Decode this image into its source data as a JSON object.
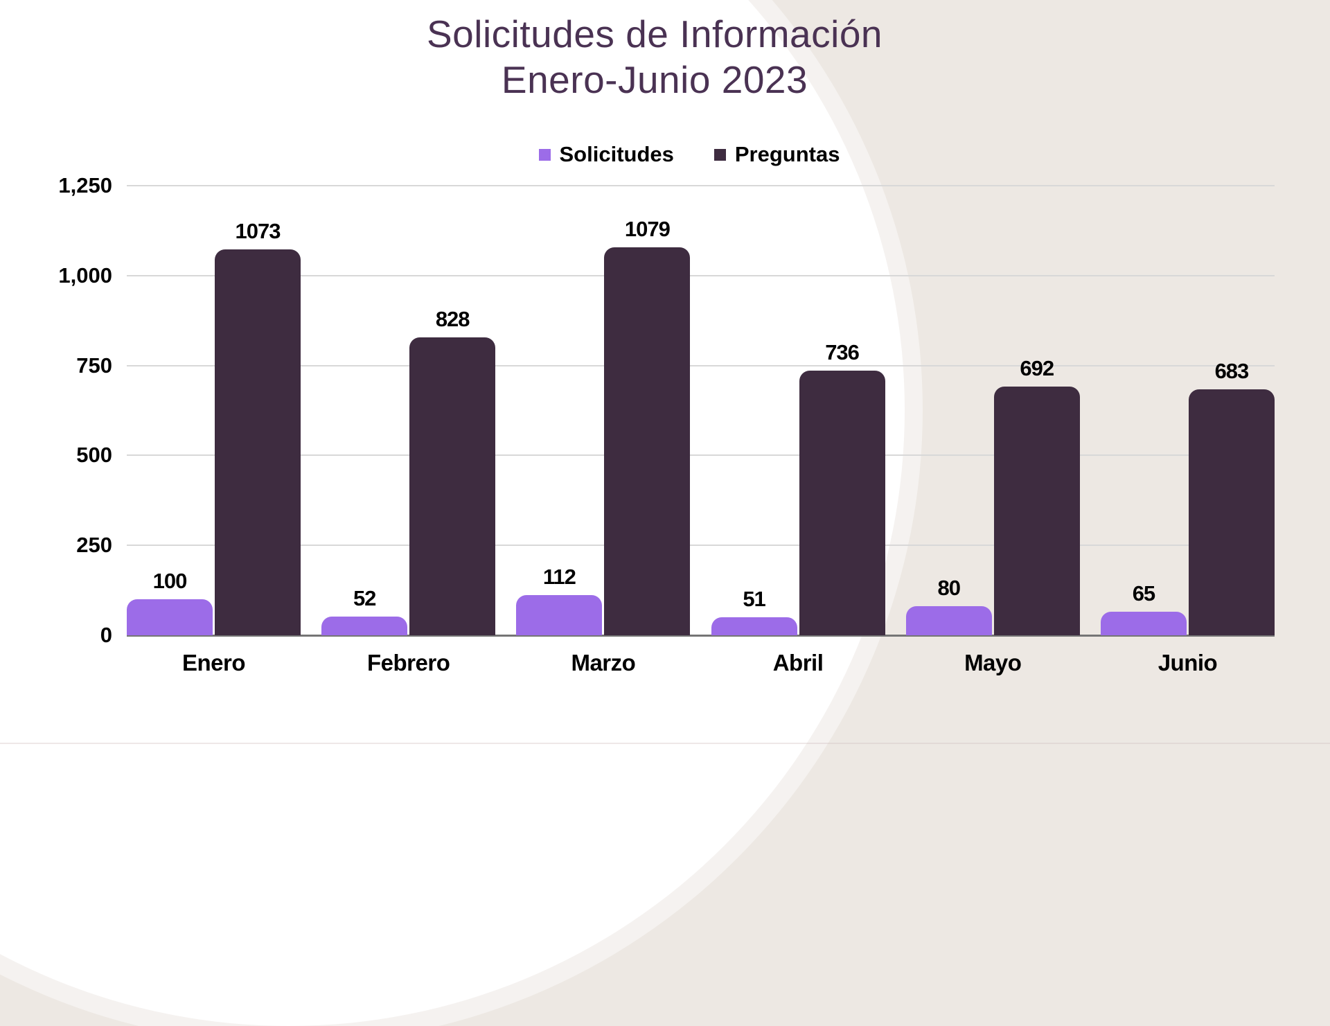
{
  "title": {
    "line1": "Solicitudes de Información",
    "line2": "Enero-Junio 2023"
  },
  "legend": [
    {
      "label": "Solicitudes",
      "color": "#9C6CE8"
    },
    {
      "label": "Preguntas",
      "color": "#3E2C40"
    }
  ],
  "chart_data": {
    "type": "bar",
    "title": "Solicitudes de Información Enero-Junio 2023",
    "categories": [
      "Enero",
      "Febrero",
      "Marzo",
      "Abril",
      "Mayo",
      "Junio"
    ],
    "series": [
      {
        "name": "Solicitudes",
        "color": "#9C6CE8",
        "values": [
          100,
          52,
          112,
          51,
          80,
          65
        ]
      },
      {
        "name": "Preguntas",
        "color": "#3E2C40",
        "values": [
          1073,
          828,
          1079,
          736,
          692,
          683
        ]
      }
    ],
    "xlabel": "",
    "ylabel": "",
    "ylim": [
      0,
      1250
    ],
    "yticks": [
      0,
      250,
      500,
      750,
      1000,
      1250
    ],
    "ytick_labels": [
      "0",
      "250",
      "500",
      "750",
      "1,000",
      "1,250"
    ],
    "grid": true,
    "legend_position": "top",
    "data_labels": true
  },
  "colors": {
    "background": "#EDE8E3",
    "circle": "#FFFFFF",
    "title": "#4A3253",
    "gridline": "#D8D8D8",
    "axis_line": "#757575",
    "label_text": "#000000"
  }
}
